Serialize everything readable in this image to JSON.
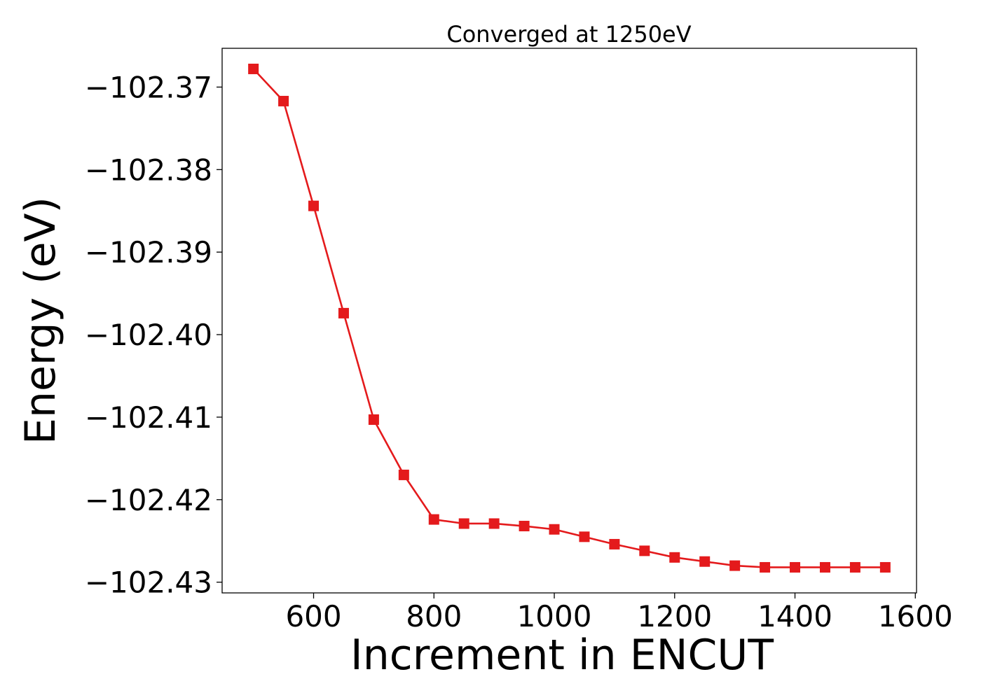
{
  "chart_data": {
    "type": "line",
    "title": "Converged at 1250eV",
    "xlabel": "Increment in ENCUT",
    "ylabel": "Energy (eV)",
    "xlim": [
      448,
      1602
    ],
    "ylim": [
      -102.4313,
      -102.3653
    ],
    "x_ticks": [
      600,
      800,
      1000,
      1200,
      1400,
      1600
    ],
    "x_tick_labels": [
      "600",
      "800",
      "1000",
      "1200",
      "1400",
      "1600"
    ],
    "y_ticks": [
      -102.37,
      -102.38,
      -102.39,
      -102.4,
      -102.41,
      -102.42,
      -102.43
    ],
    "y_tick_labels": [
      "−102.37",
      "−102.38",
      "−102.39",
      "−102.40",
      "−102.41",
      "−102.42",
      "−102.43"
    ],
    "grid": false,
    "legend": "none",
    "marker": "square",
    "series": [
      {
        "color": "#e41a1c",
        "x": [
          500,
          550,
          600,
          650,
          700,
          750,
          800,
          850,
          900,
          950,
          1000,
          1050,
          1100,
          1150,
          1200,
          1250,
          1300,
          1350,
          1400,
          1450,
          1500,
          1550
        ],
        "y": [
          -102.3678,
          -102.3717,
          -102.3844,
          -102.3974,
          -102.4103,
          -102.417,
          -102.4224,
          -102.4229,
          -102.4229,
          -102.4232,
          -102.4236,
          -102.4245,
          -102.4254,
          -102.4262,
          -102.427,
          -102.4275,
          -102.428,
          -102.4282,
          -102.4282,
          -102.4282,
          -102.4282,
          -102.4282
        ]
      }
    ]
  }
}
